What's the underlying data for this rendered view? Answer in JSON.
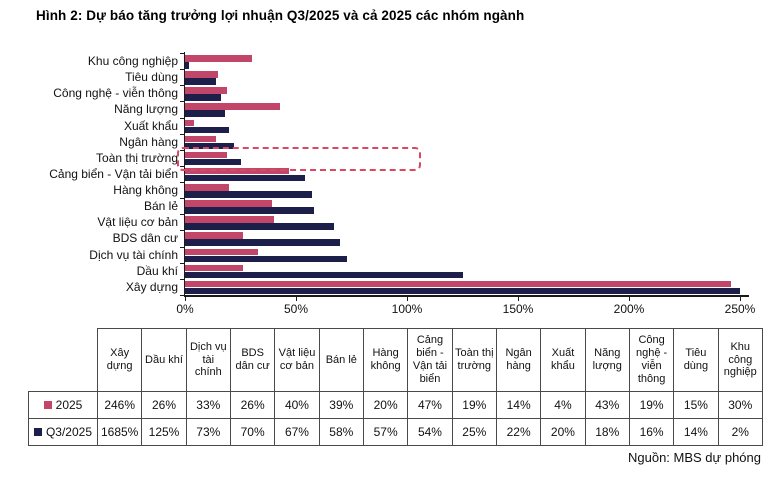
{
  "title": "Hình 2: Dự báo tăng trưởng lợi nhuận Q3/2025 và cả 2025 các nhóm ngành",
  "source": "Nguồn: MBS dự phóng",
  "colors": {
    "series_2025": "#c2466a",
    "series_q3_2025": "#1b1f4a",
    "highlight_box": "#d94a62",
    "axis": "#1a1a1a",
    "table_border": "#4a4a4a"
  },
  "chart_data": {
    "type": "bar",
    "orientation": "horizontal-grouped",
    "title": "Hình 2: Dự báo tăng trưởng lợi nhuận Q3/2025 và cả 2025 các nhóm ngành",
    "categories": [
      "Xây dựng",
      "Dầu khí",
      "Dịch vụ tài chính",
      "BDS dân cư",
      "Vật liệu cơ bản",
      "Bán lẻ",
      "Hàng không",
      "Cảng biển - Vận tải biển",
      "Toàn thị trường",
      "Ngân hàng",
      "Xuất khẩu",
      "Năng lượng",
      "Công nghệ - viễn thông",
      "Tiêu dùng",
      "Khu công nghiệp"
    ],
    "series": [
      {
        "name": "2025",
        "color": "#c2466a",
        "values_pct": [
          246,
          26,
          33,
          26,
          40,
          39,
          20,
          47,
          19,
          14,
          4,
          43,
          19,
          15,
          30
        ]
      },
      {
        "name": "Q3/2025",
        "color": "#1b1f4a",
        "values_pct": [
          1685,
          125,
          73,
          70,
          67,
          58,
          57,
          54,
          25,
          22,
          20,
          18,
          16,
          14,
          2
        ]
      }
    ],
    "x_axis": {
      "tick_labels": [
        "0%",
        "50%",
        "100%",
        "150%",
        "200%",
        "250%"
      ],
      "min_pct": 0,
      "max_pct": 250,
      "bars_clipped_at_max": [
        "Xây dựng Q3/2025 (1685%)"
      ]
    },
    "display_note": "categories drawn bottom-to-top: Xây dựng at bottom, Khu công nghiệp at top; 2025 bar above Q3/2025 bar in each pair",
    "highlight": {
      "category": "Toàn thị trường",
      "style": "red dashed rounded box around both bars"
    },
    "grid": false,
    "legend_position": "in table first column"
  },
  "table": {
    "value_suffix": "%"
  }
}
